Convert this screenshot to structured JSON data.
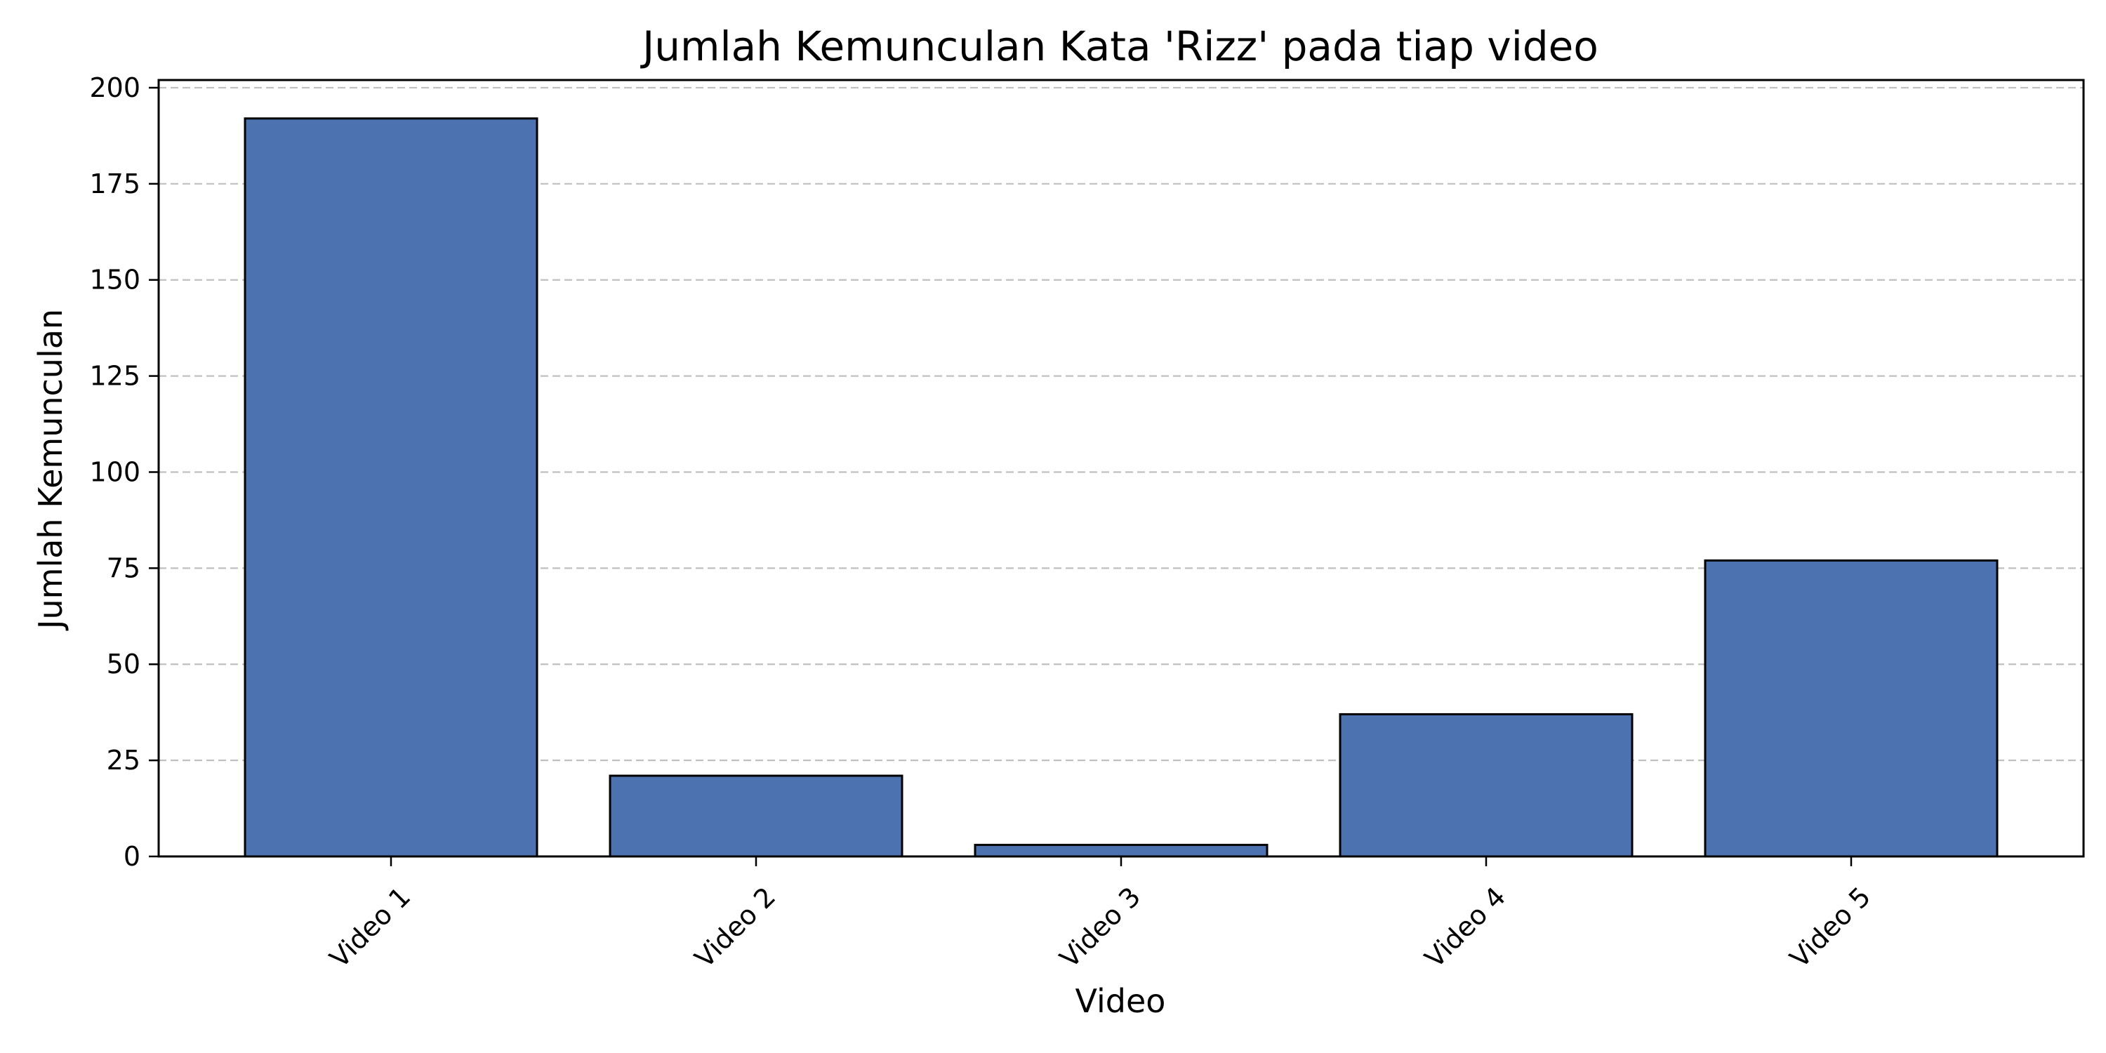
{
  "chart_data": {
    "type": "bar",
    "title": "Jumlah Kemunculan Kata 'Rizz' pada tiap video",
    "xlabel": "Video",
    "ylabel": "Jumlah Kemunculan",
    "categories": [
      "Video 1",
      "Video 2",
      "Video 3",
      "Video 4",
      "Video 5"
    ],
    "values": [
      192,
      21,
      3,
      37,
      77
    ],
    "ylim": [
      0,
      202
    ],
    "yticks": [
      0,
      25,
      50,
      75,
      100,
      125,
      150,
      175,
      200
    ],
    "grid": "y-dashed",
    "legend": "none",
    "bar_color": "#4c72b0",
    "bar_edge_color": "#000000",
    "grid_color": "#b0b0b0"
  }
}
